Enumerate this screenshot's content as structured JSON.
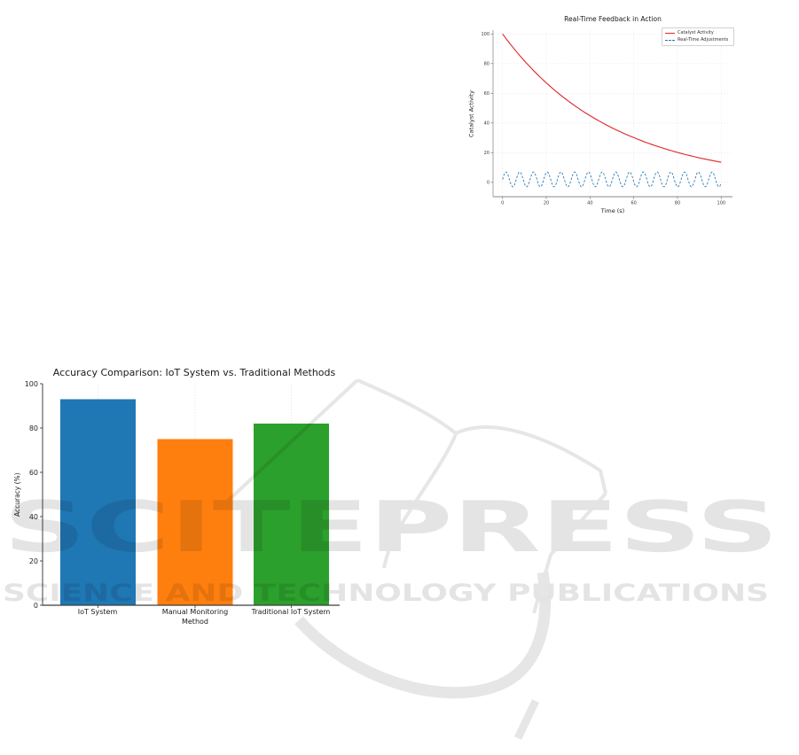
{
  "page": {
    "kind": "paper-figures-page",
    "background": "#ffffff"
  },
  "watermark": {
    "brand": "SCITEPRESS",
    "tagline": "SCIENCE AND TECHNOLOGY PUBLICATIONS",
    "color": "#e4e4e4"
  },
  "chart_data": [
    {
      "type": "line",
      "title": "Real-Time Feedback in Action",
      "xlabel": "Time (s)",
      "ylabel": "Catalyst Activity",
      "xticks": [
        0,
        20,
        40,
        60,
        80,
        100
      ],
      "yticks": [
        0,
        20,
        40,
        60,
        80,
        100
      ],
      "xlim": [
        -5,
        105
      ],
      "ylim": [
        -9,
        105
      ],
      "grid": "both-dotted",
      "legend_position": "upper right",
      "series": [
        {
          "name": "Catalyst Activity",
          "color": "#e02428",
          "line_style": "solid",
          "model": "exponential_decay",
          "formula": "activity = 100 * exp(-0.02 * t)",
          "initial_value": 100,
          "decay_rate": 0.02,
          "value_at_t0": 100,
          "value_at_t100": 13.5,
          "t_range": [
            0,
            100
          ]
        },
        {
          "name": "Real-Time Adjustments",
          "color": "#1f77b4",
          "line_style": "dashed",
          "model": "sine",
          "formula": "adjustment = 2 + 5 * sin(t)",
          "offset": 2,
          "amplitude": 5,
          "angular_frequency": 1,
          "t_range": [
            0,
            100
          ]
        }
      ]
    },
    {
      "type": "bar",
      "title": "Accuracy Comparison: IoT System vs. Traditional Methods",
      "xlabel": "",
      "ylabel": "Accuracy (%)",
      "categories": [
        "IoT System",
        "Manual Monitoring\nMethod",
        "Traditional IoT System"
      ],
      "values": [
        93,
        75,
        82
      ],
      "bar_colors": [
        "#1f77b4",
        "#ff7f0e",
        "#2ca02c"
      ],
      "yticks": [
        0,
        20,
        40,
        60,
        80,
        100
      ],
      "ylim": [
        0,
        100
      ],
      "grid": "vertical-dotted"
    }
  ]
}
